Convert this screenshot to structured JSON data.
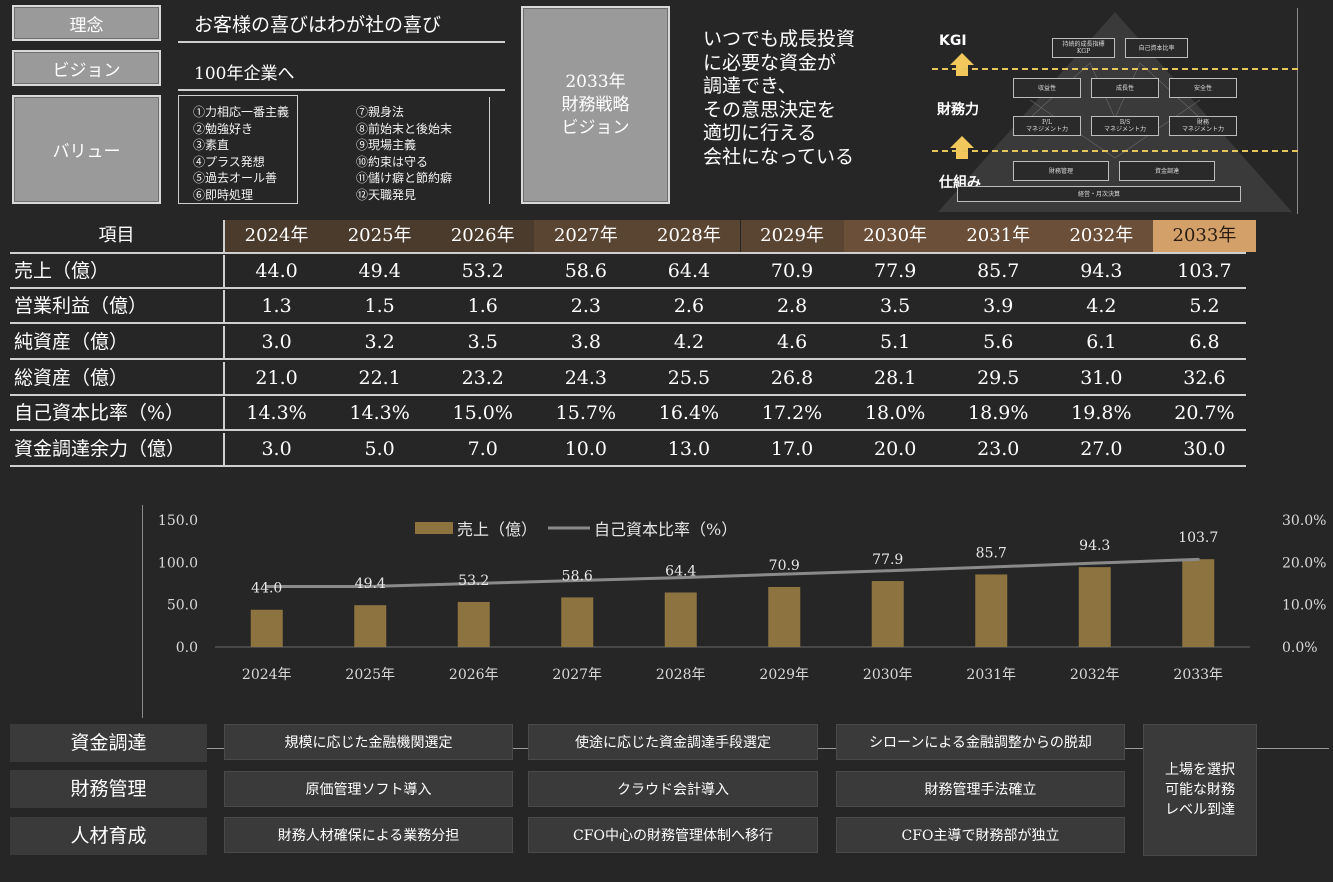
{
  "header": {
    "rinen_label": "理念",
    "rinen_text": "お客様の喜びはわが社の喜び",
    "vision_label": "ビジョン",
    "vision_text": "100年企業へ",
    "value_label": "バリュー",
    "values_col1": [
      "①力相応一番主義",
      "②勉強好き",
      "③素直",
      "④プラス発想",
      "⑤過去オール善",
      "⑥即時処理"
    ],
    "values_col2": [
      "⑦親身法",
      "⑧前始末と後始末",
      "⑨現場主義",
      "⑩約束は守る",
      "⑪儲け癖と節約癖",
      "⑫天職発見"
    ]
  },
  "strategy": {
    "box_lines": [
      "2033年",
      "財務戦略",
      "ビジョン"
    ],
    "statement_lines": [
      "いつでも成長投資",
      "に必要な資金が",
      "調達でき、",
      "その意思決定を",
      "適切に行える",
      "会社になっている"
    ]
  },
  "pyramid": {
    "kgi_label": "KGI",
    "finance_label": "財務力",
    "system_label": "仕組み",
    "top_boxes": [
      "持続的成長指標\nKGP",
      "自己資本比率"
    ],
    "mid_boxes": [
      "収益性",
      "成長性",
      "安全性"
    ],
    "mgmt_boxes": [
      "P/L\nマネジメント力",
      "B/S\nマネジメント力",
      "財務\nマネジメント力"
    ],
    "base_boxes": [
      "財務管理",
      "資金調達"
    ],
    "foundation": "経営・月次決算",
    "accent_color": "#e6c65a"
  },
  "table": {
    "header_label": "項目",
    "years": [
      "2024年",
      "2025年",
      "2026年",
      "2027年",
      "2028年",
      "2029年",
      "2030年",
      "2031年",
      "2032年",
      "2033年"
    ],
    "header_colors": [
      "#4a3b2c",
      "#4a3b2c",
      "#4a3b2c",
      "#5a4532",
      "#5a4532",
      "#5a4532",
      "#6b4f38",
      "#6b4f38",
      "#6b4f38",
      "#d4a06a"
    ],
    "rows": [
      {
        "label": "売上（億）",
        "values": [
          "44.0",
          "49.4",
          "53.2",
          "58.6",
          "64.4",
          "70.9",
          "77.9",
          "85.7",
          "94.3",
          "103.7"
        ]
      },
      {
        "label": "営業利益（億）",
        "values": [
          "1.3",
          "1.5",
          "1.6",
          "2.3",
          "2.6",
          "2.8",
          "3.5",
          "3.9",
          "4.2",
          "5.2"
        ]
      },
      {
        "label": "純資産（億）",
        "values": [
          "3.0",
          "3.2",
          "3.5",
          "3.8",
          "4.2",
          "4.6",
          "5.1",
          "5.6",
          "6.1",
          "6.8"
        ]
      },
      {
        "label": "総資産（億）",
        "values": [
          "21.0",
          "22.1",
          "23.2",
          "24.3",
          "25.5",
          "26.8",
          "28.1",
          "29.5",
          "31.0",
          "32.6"
        ]
      },
      {
        "label": "自己資本比率（%）",
        "values": [
          "14.3%",
          "14.3%",
          "15.0%",
          "15.7%",
          "16.4%",
          "17.2%",
          "18.0%",
          "18.9%",
          "19.8%",
          "20.7%"
        ]
      },
      {
        "label": "資金調達余力（億）",
        "values": [
          "3.0",
          "5.0",
          "7.0",
          "10.0",
          "13.0",
          "17.0",
          "20.0",
          "23.0",
          "27.0",
          "30.0"
        ]
      }
    ]
  },
  "chart_data": {
    "type": "bar",
    "categories": [
      "2024年",
      "2025年",
      "2026年",
      "2027年",
      "2028年",
      "2029年",
      "2030年",
      "2031年",
      "2032年",
      "2033年"
    ],
    "series": [
      {
        "name": "売上（億）",
        "type": "bar",
        "axis": "left",
        "values": [
          44.0,
          49.4,
          53.2,
          58.6,
          64.4,
          70.9,
          77.9,
          85.7,
          94.3,
          103.7
        ],
        "labels": [
          "44.0",
          "49.4",
          "53.2",
          "58.6",
          "64.4",
          "70.9",
          "77.9",
          "85.7",
          "94.3",
          "103.7"
        ],
        "color": "#8c7340"
      },
      {
        "name": "自己資本比率（%）",
        "type": "line",
        "axis": "right",
        "values": [
          14.3,
          14.3,
          15.0,
          15.7,
          16.4,
          17.2,
          18.0,
          18.9,
          19.8,
          20.7
        ],
        "color": "#8a8a8a"
      }
    ],
    "ylim": [
      0,
      150
    ],
    "y2lim": [
      0,
      30
    ],
    "yticks": [
      "0.0",
      "50.0",
      "100.0",
      "150.0"
    ],
    "y2ticks": [
      "0.0%",
      "10.0%",
      "20.0%",
      "30.0%"
    ],
    "legend_position": "top",
    "grid": false
  },
  "roadmap": {
    "rows": [
      {
        "label": "資金調達",
        "items": [
          "規模に応じた金融機関選定",
          "使途に応じた資金調達手段選定",
          "シローンによる金融調整からの脱却"
        ]
      },
      {
        "label": "財務管理",
        "items": [
          "原価管理ソフト導入",
          "クラウド会計導入",
          "財務管理手法確立"
        ]
      },
      {
        "label": "人材育成",
        "items": [
          "財務人材確保による業務分担",
          "CFO中心の財務管理体制へ移行",
          "CFO主導で財務部が独立"
        ]
      }
    ],
    "goal_lines": [
      "上場を選択",
      "可能な財務",
      "レベル到達"
    ]
  }
}
